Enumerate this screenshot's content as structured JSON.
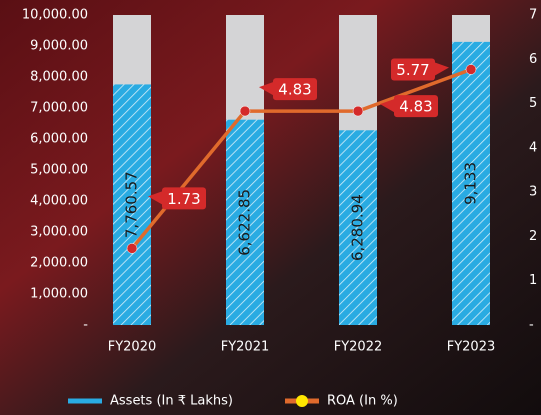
{
  "chart_data": {
    "type": "bar-line",
    "categories": [
      "FY2020",
      "FY2021",
      "FY2022",
      "FY2023"
    ],
    "series": [
      {
        "name": "Assets (In ₹ Lakhs)",
        "color": "#29abe2",
        "values": [
          7760.57,
          6622.85,
          6280.94,
          9133
        ],
        "value_labels": [
          "7,760.57",
          "6,622.85",
          "6,280.94",
          "9,133"
        ]
      },
      {
        "name": "ROA (In %)",
        "color": "#e06a2c",
        "axis": "y2",
        "marker_color": "#ffe600",
        "values": [
          1.73,
          4.83,
          4.83,
          5.77
        ],
        "value_labels": [
          "1.73",
          "4.83",
          "4.83",
          "5.77"
        ]
      }
    ],
    "ylim": [
      0,
      10000
    ],
    "yticks": [
      {
        "value": 0,
        "label": "-"
      },
      {
        "value": 1000,
        "label": "1,000.00"
      },
      {
        "value": 2000,
        "label": "2,000.00"
      },
      {
        "value": 3000,
        "label": "3,000.00"
      },
      {
        "value": 4000,
        "label": "4,000.00"
      },
      {
        "value": 5000,
        "label": "5,000.00"
      },
      {
        "value": 6000,
        "label": "6,000.00"
      },
      {
        "value": 7000,
        "label": "7,000.00"
      },
      {
        "value": 8000,
        "label": "8,000.00"
      },
      {
        "value": 9000,
        "label": "9,000.00"
      },
      {
        "value": 10000,
        "label": "10,000.00"
      }
    ],
    "y2lim": [
      0,
      7
    ],
    "y2ticks": [
      {
        "value": 0,
        "label": "-"
      },
      1,
      2,
      3,
      4,
      5,
      6,
      7
    ]
  }
}
